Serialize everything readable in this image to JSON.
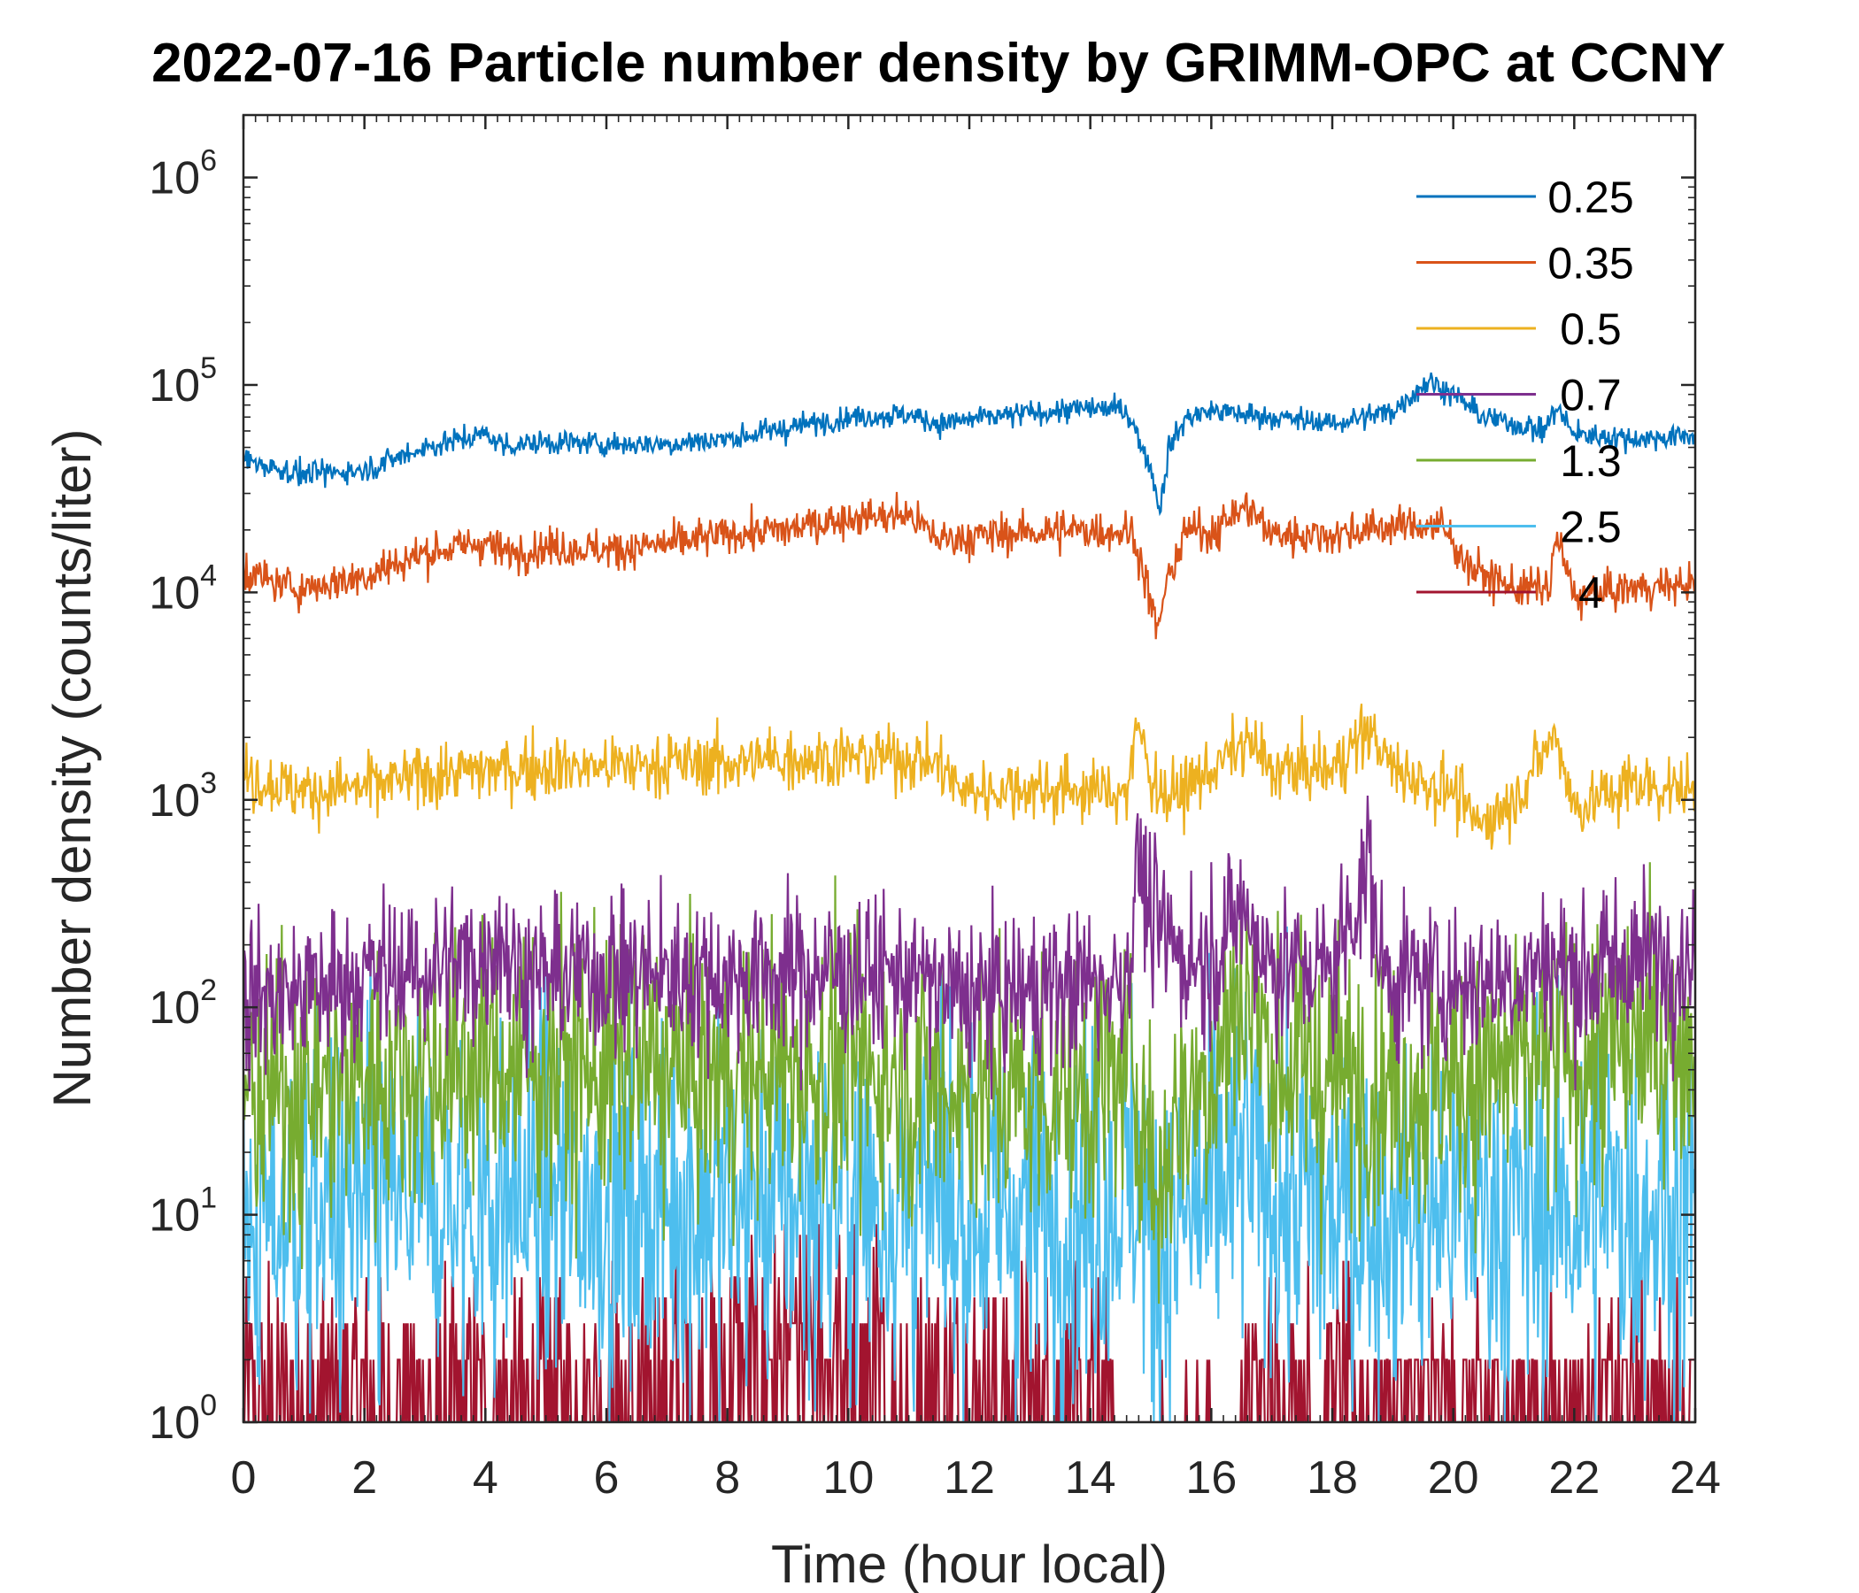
{
  "chart_data": {
    "type": "line",
    "title": "2022-07-16 Particle number density by GRIMM-OPC at CCNY",
    "xlabel": "Time (hour local)",
    "ylabel": "Number density (counts/liter)",
    "xlim": [
      0,
      24
    ],
    "ylim": [
      1,
      2000000
    ],
    "yscale": "log",
    "xticks": [
      0,
      2,
      4,
      6,
      8,
      10,
      12,
      14,
      16,
      18,
      20,
      22,
      24
    ],
    "xtick_labels": [
      "0",
      "2",
      "4",
      "6",
      "8",
      "10",
      "12",
      "14",
      "16",
      "18",
      "20",
      "22",
      "24"
    ],
    "yticks": [
      {
        "value": 1,
        "base": "10",
        "exp": "0"
      },
      {
        "value": 10,
        "base": "10",
        "exp": "1"
      },
      {
        "value": 100,
        "base": "10",
        "exp": "2"
      },
      {
        "value": 1000,
        "base": "10",
        "exp": "3"
      },
      {
        "value": 10000,
        "base": "10",
        "exp": "4"
      },
      {
        "value": 100000,
        "base": "10",
        "exp": "5"
      },
      {
        "value": 1000000,
        "base": "10",
        "exp": "6"
      }
    ],
    "legend_position": "top-right",
    "series": [
      {
        "name": "0.25",
        "legend_label": "0.25",
        "color": "#0072BD",
        "noise": 0.05,
        "points": [
          [
            0,
            44000
          ],
          [
            0.5,
            40000
          ],
          [
            1,
            37000
          ],
          [
            2,
            39000
          ],
          [
            3,
            50000
          ],
          [
            4,
            58000
          ],
          [
            4.3,
            51000
          ],
          [
            5,
            53000
          ],
          [
            6,
            52000
          ],
          [
            7,
            52000
          ],
          [
            8,
            55000
          ],
          [
            9,
            62000
          ],
          [
            10,
            70000
          ],
          [
            11,
            72000
          ],
          [
            11.5,
            65000
          ],
          [
            12,
            68000
          ],
          [
            13,
            73000
          ],
          [
            14,
            77000
          ],
          [
            14.6,
            76000
          ],
          [
            14.8,
            55000
          ],
          [
            15,
            40000
          ],
          [
            15.15,
            25000
          ],
          [
            15.3,
            50000
          ],
          [
            15.6,
            70000
          ],
          [
            16,
            75000
          ],
          [
            17,
            70000
          ],
          [
            18,
            65000
          ],
          [
            19,
            75000
          ],
          [
            19.6,
            105000
          ],
          [
            20,
            90000
          ],
          [
            20.5,
            70000
          ],
          [
            21,
            65000
          ],
          [
            21.5,
            60000
          ],
          [
            21.7,
            78000
          ],
          [
            22,
            58000
          ],
          [
            23,
            55000
          ],
          [
            24,
            57000
          ]
        ]
      },
      {
        "name": "0.35",
        "legend_label": "0.35",
        "color": "#D95319",
        "noise": 0.08,
        "points": [
          [
            0,
            13000
          ],
          [
            0.5,
            11000
          ],
          [
            1,
            10500
          ],
          [
            2,
            12000
          ],
          [
            3,
            15500
          ],
          [
            4,
            17500
          ],
          [
            4.3,
            15500
          ],
          [
            5,
            16500
          ],
          [
            6,
            16000
          ],
          [
            7,
            17000
          ],
          [
            8,
            19000
          ],
          [
            9,
            20000
          ],
          [
            10,
            23000
          ],
          [
            11,
            23500
          ],
          [
            11.5,
            18000
          ],
          [
            12,
            18500
          ],
          [
            13,
            19500
          ],
          [
            14,
            20000
          ],
          [
            14.7,
            19500
          ],
          [
            14.9,
            12000
          ],
          [
            15.1,
            6500
          ],
          [
            15.3,
            12000
          ],
          [
            15.6,
            20000
          ],
          [
            16,
            19500
          ],
          [
            16.3,
            23000
          ],
          [
            16.6,
            26000
          ],
          [
            17,
            19000
          ],
          [
            18,
            19000
          ],
          [
            19,
            21000
          ],
          [
            19.8,
            21000
          ],
          [
            20.3,
            13000
          ],
          [
            21,
            10500
          ],
          [
            21.6,
            10500
          ],
          [
            21.7,
            19000
          ],
          [
            22,
            9500
          ],
          [
            23,
            10500
          ],
          [
            24,
            11000
          ]
        ]
      },
      {
        "name": "0.5",
        "legend_label": "0.5",
        "color": "#EDB120",
        "noise": 0.13,
        "points": [
          [
            0,
            1300
          ],
          [
            1,
            1100
          ],
          [
            2,
            1150
          ],
          [
            3,
            1300
          ],
          [
            4,
            1400
          ],
          [
            5,
            1450
          ],
          [
            6,
            1450
          ],
          [
            7,
            1500
          ],
          [
            8,
            1500
          ],
          [
            9,
            1600
          ],
          [
            10,
            1600
          ],
          [
            11,
            1600
          ],
          [
            11.5,
            1500
          ],
          [
            11.8,
            1150
          ],
          [
            12,
            1100
          ],
          [
            13,
            1150
          ],
          [
            14,
            1100
          ],
          [
            14.6,
            1100
          ],
          [
            14.8,
            2300
          ],
          [
            15,
            1300
          ],
          [
            15.3,
            1000
          ],
          [
            16,
            1400
          ],
          [
            16.6,
            1900
          ],
          [
            17,
            1400
          ],
          [
            18,
            1400
          ],
          [
            18.6,
            2200
          ],
          [
            19,
            1400
          ],
          [
            20,
            1100
          ],
          [
            20.4,
            750
          ],
          [
            21,
            1000
          ],
          [
            21.7,
            2100
          ],
          [
            22,
            900
          ],
          [
            23,
            1200
          ],
          [
            24,
            1100
          ]
        ]
      },
      {
        "name": "0.7",
        "legend_label": "0.7",
        "color": "#7E2F8E",
        "noise": 0.32,
        "points": [
          [
            0,
            110
          ],
          [
            1,
            120
          ],
          [
            2,
            140
          ],
          [
            3,
            150
          ],
          [
            4,
            170
          ],
          [
            4.2,
            240
          ],
          [
            4.5,
            150
          ],
          [
            5,
            140
          ],
          [
            6,
            150
          ],
          [
            7,
            145
          ],
          [
            8,
            140
          ],
          [
            9,
            145
          ],
          [
            10,
            150
          ],
          [
            11,
            140
          ],
          [
            12,
            110
          ],
          [
            13,
            120
          ],
          [
            14,
            130
          ],
          [
            14.6,
            140
          ],
          [
            14.8,
            550
          ],
          [
            15,
            250
          ],
          [
            15.5,
            180
          ],
          [
            16,
            170
          ],
          [
            16.5,
            300
          ],
          [
            16.8,
            200
          ],
          [
            17,
            160
          ],
          [
            18,
            150
          ],
          [
            18.6,
            500
          ],
          [
            18.8,
            160
          ],
          [
            19,
            140
          ],
          [
            20,
            130
          ],
          [
            21,
            140
          ],
          [
            21.6,
            170
          ],
          [
            22,
            140
          ],
          [
            23,
            170
          ],
          [
            24,
            180
          ]
        ]
      },
      {
        "name": "1.3",
        "legend_label": "1.3",
        "color": "#77AC30",
        "noise": 0.55,
        "points": [
          [
            0,
            35
          ],
          [
            1,
            40
          ],
          [
            2,
            45
          ],
          [
            3,
            50
          ],
          [
            4,
            55
          ],
          [
            5,
            50
          ],
          [
            6,
            50
          ],
          [
            7,
            50
          ],
          [
            8,
            45
          ],
          [
            9,
            50
          ],
          [
            10,
            50
          ],
          [
            11,
            45
          ],
          [
            12,
            40
          ],
          [
            13,
            38
          ],
          [
            14,
            40
          ],
          [
            14.7,
            50
          ],
          [
            14.9,
            30
          ],
          [
            15.1,
            12
          ],
          [
            15.4,
            30
          ],
          [
            16,
            50
          ],
          [
            16.6,
            120
          ],
          [
            17,
            55
          ],
          [
            18,
            45
          ],
          [
            19,
            42
          ],
          [
            20,
            45
          ],
          [
            21,
            50
          ],
          [
            22,
            55
          ],
          [
            23,
            65
          ],
          [
            24,
            70
          ]
        ]
      },
      {
        "name": "2.5",
        "legend_label": "2.5",
        "color": "#4DBEEE",
        "noise": 0.75,
        "points": [
          [
            0,
            8
          ],
          [
            1,
            10
          ],
          [
            2,
            10
          ],
          [
            3,
            11
          ],
          [
            4,
            12
          ],
          [
            5,
            12
          ],
          [
            6,
            11
          ],
          [
            7,
            12
          ],
          [
            8,
            11
          ],
          [
            9,
            12
          ],
          [
            10,
            12
          ],
          [
            11,
            11
          ],
          [
            12,
            10
          ],
          [
            13,
            10
          ],
          [
            14,
            10
          ],
          [
            14.8,
            15
          ],
          [
            15,
            7
          ],
          [
            16,
            11
          ],
          [
            16.6,
            20
          ],
          [
            17,
            12
          ],
          [
            18,
            10
          ],
          [
            19,
            10
          ],
          [
            20,
            11
          ],
          [
            21,
            10
          ],
          [
            22,
            11
          ],
          [
            23,
            11
          ],
          [
            24,
            12
          ]
        ]
      },
      {
        "name": "4",
        "legend_label": "4",
        "color": "#A2142F",
        "noise": 0,
        "points": [
          [
            0,
            2
          ],
          [
            2,
            2
          ],
          [
            4,
            2
          ],
          [
            6,
            2
          ],
          [
            8,
            3
          ],
          [
            10,
            3
          ],
          [
            12,
            2.5
          ],
          [
            14,
            2
          ],
          [
            15,
            1
          ],
          [
            16,
            1.5
          ],
          [
            17,
            2
          ],
          [
            18,
            2
          ],
          [
            19,
            1.5
          ],
          [
            20,
            1.5
          ],
          [
            22,
            1.5
          ],
          [
            24,
            1.5
          ]
        ]
      }
    ]
  }
}
